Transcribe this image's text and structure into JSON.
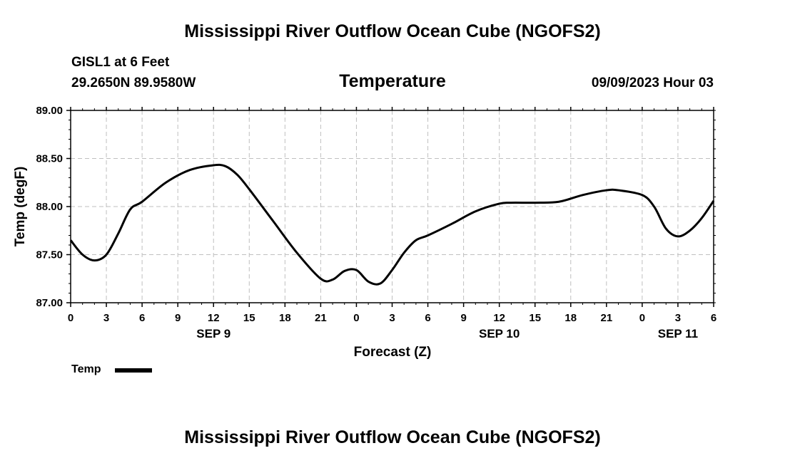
{
  "header": {
    "title": "Mississippi River Outflow Ocean Cube (NGOFS2)",
    "station": "GISL1 at 6 Feet",
    "coords": "29.2650N  89.9580W",
    "subtitle": "Temperature",
    "datetime": "09/09/2023 Hour 03"
  },
  "footer": {
    "title": "Mississippi River Outflow Ocean Cube (NGOFS2)"
  },
  "legend": {
    "label": "Temp"
  },
  "colors": {
    "line": "#000000",
    "grid": "#bfbfbf"
  },
  "chart_data": {
    "type": "line",
    "title": "Temperature",
    "xlabel": "Forecast (Z)",
    "ylabel": "Temp (degF)",
    "ylim": [
      87.0,
      89.0
    ],
    "yticks": [
      "87.00",
      "87.50",
      "88.00",
      "88.50",
      "89.00"
    ],
    "xlim": [
      0,
      54
    ],
    "x_tick_hours": [
      0,
      3,
      6,
      9,
      12,
      15,
      18,
      21,
      24,
      27,
      30,
      33,
      36,
      39,
      42,
      45,
      48,
      51,
      54
    ],
    "x_tick_labels": [
      "0",
      "3",
      "6",
      "9",
      "12",
      "15",
      "18",
      "21",
      "0",
      "3",
      "6",
      "9",
      "12",
      "15",
      "18",
      "21",
      "0",
      "3",
      "6"
    ],
    "date_labels": [
      {
        "hour": 12,
        "label": "SEP 9"
      },
      {
        "hour": 36,
        "label": "SEP 10"
      },
      {
        "hour": 51,
        "label": "SEP 11"
      }
    ],
    "series": [
      {
        "name": "Temp",
        "x": [
          0,
          1,
          2,
          3,
          4,
          5,
          6,
          8,
          10,
          12,
          13,
          14,
          15,
          17,
          19,
          21,
          22,
          23,
          24,
          25,
          26,
          27,
          28,
          29,
          30,
          32,
          34,
          36,
          37,
          39,
          41,
          43,
          45,
          46,
          48,
          49,
          50,
          51,
          52,
          53,
          54
        ],
        "y": [
          87.65,
          87.5,
          87.44,
          87.5,
          87.72,
          87.97,
          88.05,
          88.25,
          88.38,
          88.43,
          88.42,
          88.33,
          88.18,
          87.85,
          87.52,
          87.25,
          87.24,
          87.33,
          87.34,
          87.22,
          87.2,
          87.34,
          87.52,
          87.65,
          87.7,
          87.82,
          87.95,
          88.03,
          88.04,
          88.04,
          88.05,
          88.12,
          88.17,
          88.17,
          88.12,
          88.0,
          87.77,
          87.69,
          87.75,
          87.88,
          88.06
        ]
      }
    ]
  }
}
